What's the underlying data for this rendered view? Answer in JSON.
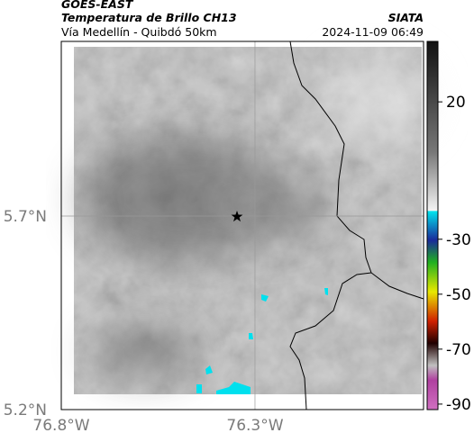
{
  "header": {
    "source": "GOES-EAST",
    "title": "Temperatura de Brillo CH13",
    "credit": "SIATA",
    "subtitle": "Vía Medellín - Quibdó 50km",
    "timestamp": "2024-11-09 06:49"
  },
  "map": {
    "xlim": [
      -76.8,
      -75.865
    ],
    "ylim": [
      5.2,
      6.151
    ],
    "xticks": [
      {
        "value": -76.8,
        "label": "76.8°W"
      },
      {
        "value": -76.3,
        "label": "76.3°W"
      }
    ],
    "yticks": [
      {
        "value": 5.2,
        "label": "5.2°N"
      },
      {
        "value": 5.7,
        "label": "5.7°N"
      }
    ],
    "grid": true
  },
  "colorbar": {
    "clim": [
      -92,
      42
    ],
    "ticks": [
      20,
      -30,
      -50,
      -70,
      -90
    ]
  }
}
